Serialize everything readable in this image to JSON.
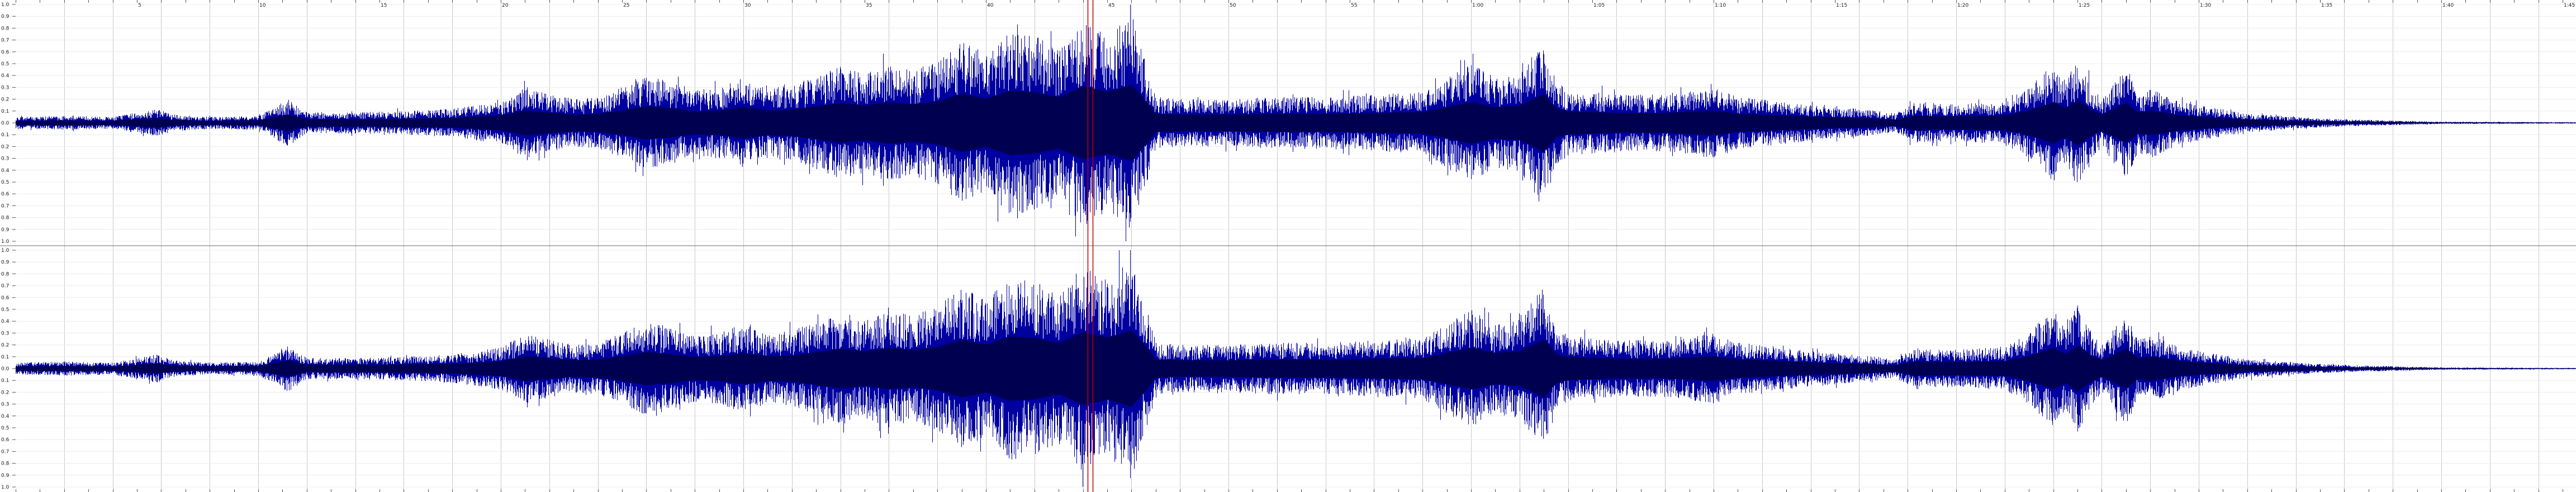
{
  "timeline": {
    "labels": [
      "5",
      "10",
      "15",
      "20",
      "25",
      "30",
      "35",
      "40",
      "45",
      "50",
      "55",
      "1:00",
      "1:05",
      "1:10",
      "1:15",
      "1:20",
      "1:25",
      "1:30",
      "1:35",
      "1:40",
      "1:45"
    ],
    "seconds_per_label": 5,
    "total_seconds": 107
  },
  "amplitude_ruler": {
    "labels": [
      "1.0",
      "0.9",
      "0.8",
      "0.7",
      "0.6",
      "0.5",
      "0.4",
      "0.3",
      "0.2",
      "0.1",
      "0.0",
      "0.1",
      "0.2",
      "0.3",
      "0.4",
      "0.5",
      "0.6",
      "0.7",
      "0.8",
      "0.9",
      "1.0"
    ]
  },
  "channels": [
    {
      "id": "channel-left",
      "color": "#0000a0"
    },
    {
      "id": "channel-right",
      "color": "#0000a0"
    }
  ],
  "envelope": [
    [
      0,
      0.05
    ],
    [
      2,
      0.06
    ],
    [
      4,
      0.05
    ],
    [
      5.8,
      0.12
    ],
    [
      6.5,
      0.07
    ],
    [
      8,
      0.05
    ],
    [
      10,
      0.06
    ],
    [
      11.2,
      0.2
    ],
    [
      12,
      0.09
    ],
    [
      14,
      0.09
    ],
    [
      16,
      0.1
    ],
    [
      18,
      0.12
    ],
    [
      20,
      0.18
    ],
    [
      21,
      0.3
    ],
    [
      22,
      0.25
    ],
    [
      23,
      0.2
    ],
    [
      24,
      0.22
    ],
    [
      25,
      0.3
    ],
    [
      26,
      0.4
    ],
    [
      27,
      0.35
    ],
    [
      28,
      0.28
    ],
    [
      29,
      0.3
    ],
    [
      30,
      0.38
    ],
    [
      31,
      0.3
    ],
    [
      32,
      0.32
    ],
    [
      33,
      0.4
    ],
    [
      34,
      0.48
    ],
    [
      35,
      0.42
    ],
    [
      36,
      0.5
    ],
    [
      37,
      0.45
    ],
    [
      38,
      0.52
    ],
    [
      39,
      0.7
    ],
    [
      40,
      0.58
    ],
    [
      41,
      0.78
    ],
    [
      42,
      0.74
    ],
    [
      43,
      0.62
    ],
    [
      44,
      0.88
    ],
    [
      45,
      0.75
    ],
    [
      46,
      0.92
    ],
    [
      46.7,
      0.45
    ],
    [
      47,
      0.22
    ],
    [
      48,
      0.2
    ],
    [
      50,
      0.2
    ],
    [
      52,
      0.22
    ],
    [
      54,
      0.22
    ],
    [
      56,
      0.24
    ],
    [
      58,
      0.26
    ],
    [
      60,
      0.5
    ],
    [
      61,
      0.38
    ],
    [
      62,
      0.42
    ],
    [
      63,
      0.7
    ],
    [
      63.5,
      0.35
    ],
    [
      64,
      0.28
    ],
    [
      66,
      0.24
    ],
    [
      68,
      0.24
    ],
    [
      70,
      0.3
    ],
    [
      71,
      0.22
    ],
    [
      72,
      0.2
    ],
    [
      74,
      0.15
    ],
    [
      76,
      0.12
    ],
    [
      77.5,
      0.08
    ],
    [
      78.3,
      0.18
    ],
    [
      79,
      0.16
    ],
    [
      80,
      0.16
    ],
    [
      82,
      0.18
    ],
    [
      83,
      0.3
    ],
    [
      84,
      0.5
    ],
    [
      84.5,
      0.35
    ],
    [
      85,
      0.55
    ],
    [
      85.6,
      0.3
    ],
    [
      86,
      0.2
    ],
    [
      87,
      0.48
    ],
    [
      87.5,
      0.25
    ],
    [
      88,
      0.3
    ],
    [
      89,
      0.2
    ],
    [
      90,
      0.15
    ],
    [
      92,
      0.08
    ],
    [
      94,
      0.05
    ],
    [
      96,
      0.03
    ],
    [
      98,
      0.02
    ],
    [
      100,
      0.01
    ],
    [
      107,
      0.005
    ]
  ],
  "markers": [
    {
      "id": "marker-1",
      "time": 44.2,
      "color": "#c00000"
    },
    {
      "id": "marker-2",
      "time": 44.4,
      "color": "#c00000"
    }
  ]
}
